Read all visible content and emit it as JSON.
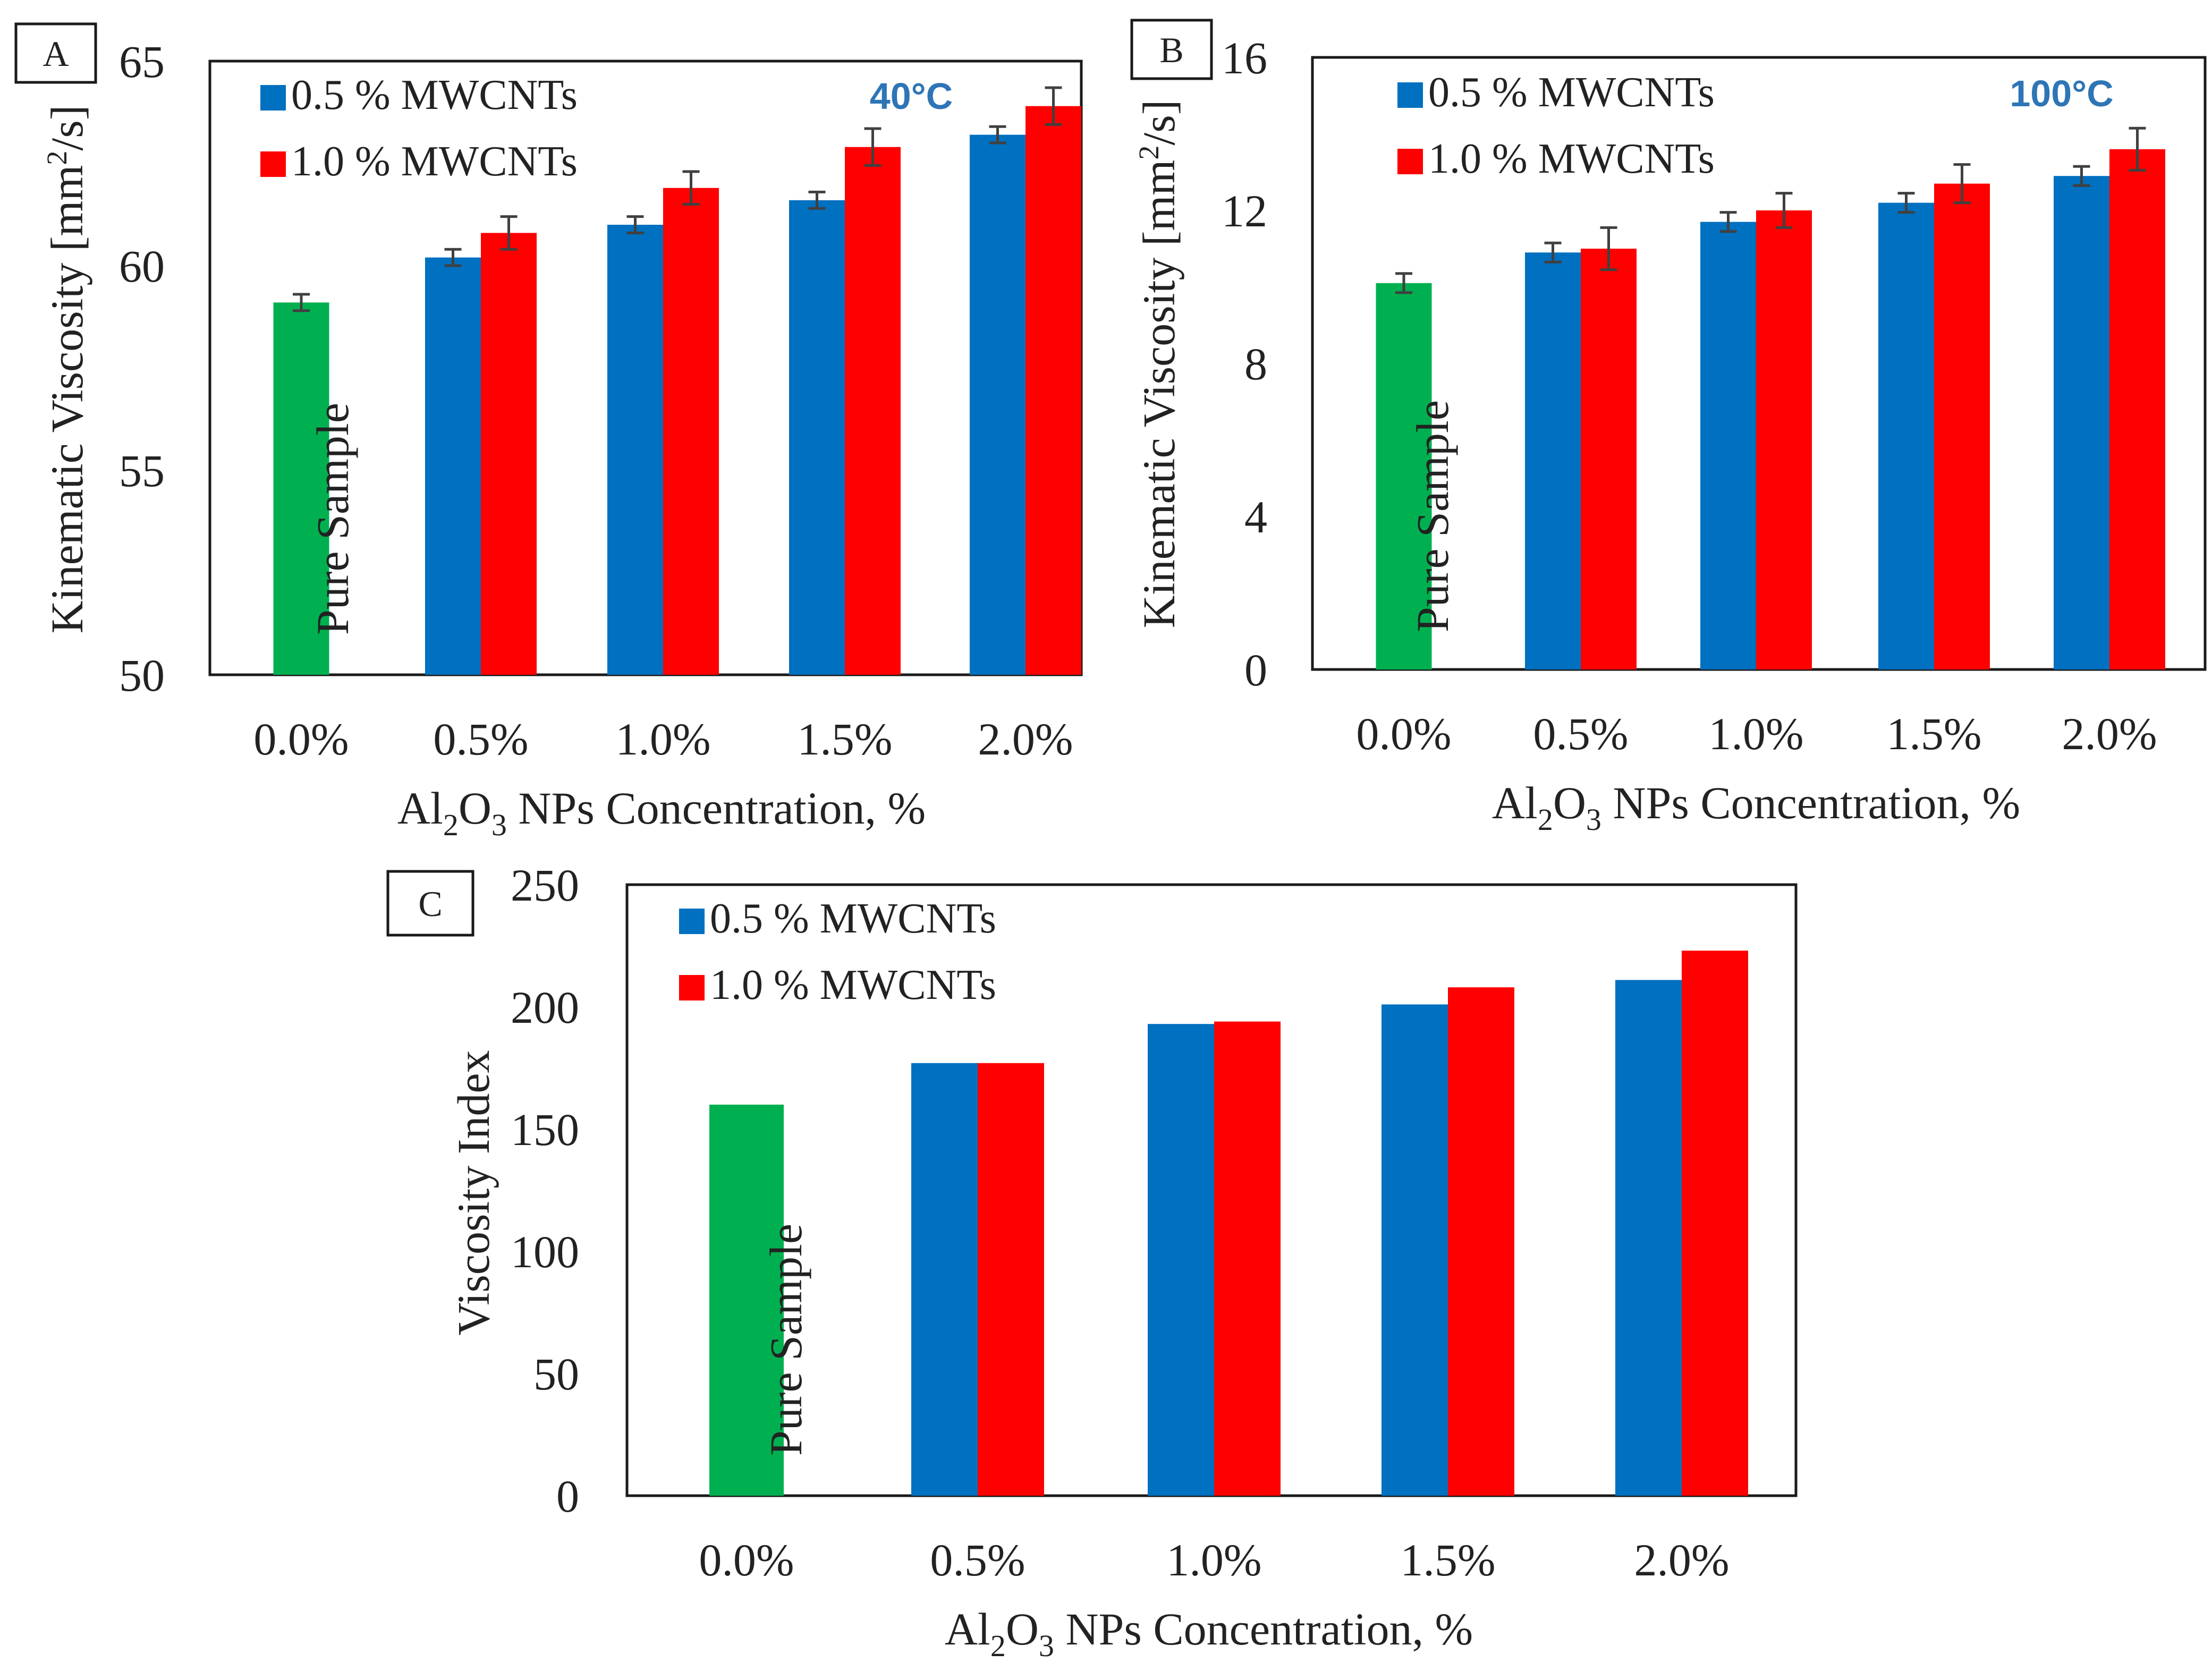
{
  "colors": {
    "pure": "#00b050",
    "series1": "#0070c0",
    "series2": "#ff0000",
    "temperature": "#2e75b6"
  },
  "chart_data": [
    {
      "type": "bar",
      "panel_label": "A",
      "temperature": "40°C",
      "categories": [
        "0.0%",
        "0.5%",
        "1.0%",
        "1.5%",
        "2.0%"
      ],
      "pure_label": "Pure Sample",
      "pure_value": 59.1,
      "pure_error": 0.2,
      "series": [
        {
          "name": "0.5 % MWCNTs",
          "values": [
            null,
            60.2,
            61.0,
            61.6,
            63.2
          ],
          "errors": [
            null,
            0.2,
            0.2,
            0.2,
            0.2
          ]
        },
        {
          "name": "1.0 % MWCNTs",
          "values": [
            null,
            60.8,
            61.9,
            62.9,
            63.9
          ],
          "errors": [
            null,
            0.4,
            0.4,
            0.45,
            0.45
          ]
        }
      ],
      "ylabel": "Kinematic Viscosity [mm²/s]",
      "ylabel_main": "Kinematic Viscosity [mm",
      "ylabel_sup": "2",
      "ylabel_tail": "/s]",
      "xlabel": "Al₂O₃ NPs Concentration, %",
      "xlabel_al": "Al",
      "xlabel_sub1": "2",
      "xlabel_o": "O",
      "xlabel_sub2": "3",
      "xlabel_rest": " NPs Concentration, %",
      "ylim": [
        50,
        65
      ],
      "yticks": [
        "50",
        "55",
        "60",
        "65"
      ]
    },
    {
      "type": "bar",
      "panel_label": "B",
      "temperature": "100°C",
      "categories": [
        "0.0%",
        "0.5%",
        "1.0%",
        "1.5%",
        "2.0%"
      ],
      "pure_label": "Pure Sample",
      "pure_value": 10.1,
      "pure_error": 0.25,
      "series": [
        {
          "name": "0.5 % MWCNTs",
          "values": [
            null,
            10.9,
            11.7,
            12.2,
            12.9
          ],
          "errors": [
            null,
            0.25,
            0.25,
            0.25,
            0.25
          ]
        },
        {
          "name": "1.0 % MWCNTs",
          "values": [
            null,
            11.0,
            12.0,
            12.7,
            13.6
          ],
          "errors": [
            null,
            0.55,
            0.45,
            0.5,
            0.55
          ]
        }
      ],
      "ylabel": "Kinematic Viscosity [mm²/s]",
      "ylabel_main": "Kinematic Viscosity [mm",
      "ylabel_sup": "2",
      "ylabel_tail": "/s]",
      "xlabel": "Al₂O₃ NPs Concentration, %",
      "xlabel_al": "Al",
      "xlabel_sub1": "2",
      "xlabel_o": "O",
      "xlabel_sub2": "3",
      "xlabel_rest": " NPs Concentration, %",
      "ylim": [
        0,
        16
      ],
      "yticks": [
        "0",
        "4",
        "8",
        "12",
        "16"
      ]
    },
    {
      "type": "bar",
      "panel_label": "C",
      "temperature": "",
      "categories": [
        "0.0%",
        "0.5%",
        "1.0%",
        "1.5%",
        "2.0%"
      ],
      "pure_label": "Pure Sample",
      "pure_value": 160,
      "pure_error": null,
      "series": [
        {
          "name": "0.5 % MWCNTs",
          "values": [
            null,
            177,
            193,
            201,
            211
          ],
          "errors": null
        },
        {
          "name": "1.0 % MWCNTs",
          "values": [
            null,
            177,
            194,
            208,
            223
          ],
          "errors": null
        }
      ],
      "ylabel": "Viscosity Index",
      "ylabel_main": "Viscosity Index",
      "ylabel_sup": "",
      "ylabel_tail": "",
      "xlabel": "Al₂O₃ NPs Concentration, %",
      "xlabel_al": "Al",
      "xlabel_sub1": "2",
      "xlabel_o": "O",
      "xlabel_sub2": "3",
      "xlabel_rest": " NPs Concentration, %",
      "ylim": [
        0,
        250
      ],
      "yticks": [
        "0",
        "50",
        "100",
        "150",
        "200",
        "250"
      ]
    }
  ]
}
